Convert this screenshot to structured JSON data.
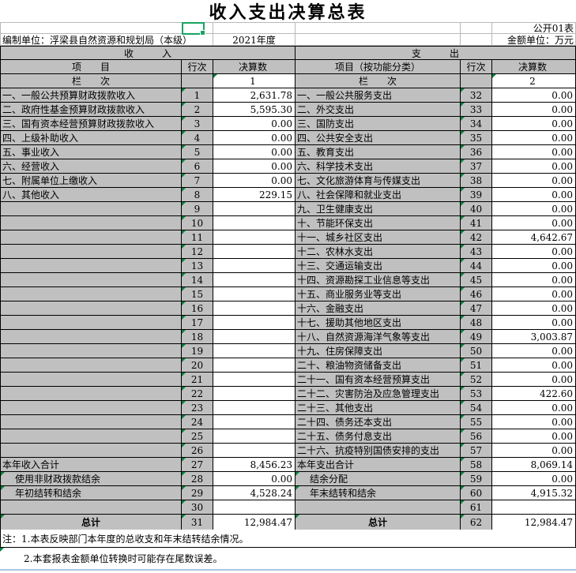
{
  "title": "收入支出决算总表",
  "meta": {
    "doc_label": "公开01表",
    "org_unit": "编制单位：浮梁县自然资源和规划局（本级）",
    "year": "2021年度",
    "amount_unit": "金额单位：万元"
  },
  "table": {
    "income_header": "收　　　入",
    "expense_header": "支　　　出",
    "col_item": "项　　目",
    "col_item_fn": "项目（按功能分类）",
    "col_line": "行次",
    "col_value": "决算数",
    "col_rank": "栏　　次",
    "col_index_income": "1",
    "col_index_expense": "2",
    "income_rows": [
      {
        "label": "一、一般公共预算财政拨款收入",
        "line": "1",
        "value": "2,631.78",
        "style": ""
      },
      {
        "label": "二、政府性基金预算财政拨款收入",
        "line": "2",
        "value": "5,595.30",
        "style": ""
      },
      {
        "label": "三、国有资本经营预算财政拨款收入",
        "line": "3",
        "value": "0.00",
        "style": ""
      },
      {
        "label": "四、上级补助收入",
        "line": "4",
        "value": "0.00",
        "style": ""
      },
      {
        "label": "五、事业收入",
        "line": "5",
        "value": "0.00",
        "style": ""
      },
      {
        "label": "六、经营收入",
        "line": "6",
        "value": "0.00",
        "style": ""
      },
      {
        "label": "七、附属单位上缴收入",
        "line": "7",
        "value": "0.00",
        "style": ""
      },
      {
        "label": "八、其他收入",
        "line": "8",
        "value": "229.15",
        "style": ""
      },
      {
        "label": "",
        "line": "9",
        "value": "",
        "style": ""
      },
      {
        "label": "",
        "line": "10",
        "value": "",
        "style": ""
      },
      {
        "label": "",
        "line": "11",
        "value": "",
        "style": ""
      },
      {
        "label": "",
        "line": "12",
        "value": "",
        "style": ""
      },
      {
        "label": "",
        "line": "13",
        "value": "",
        "style": ""
      },
      {
        "label": "",
        "line": "14",
        "value": "",
        "style": ""
      },
      {
        "label": "",
        "line": "15",
        "value": "",
        "style": ""
      },
      {
        "label": "",
        "line": "16",
        "value": "",
        "style": ""
      },
      {
        "label": "",
        "line": "17",
        "value": "",
        "style": ""
      },
      {
        "label": "",
        "line": "18",
        "value": "",
        "style": ""
      },
      {
        "label": "",
        "line": "19",
        "value": "",
        "style": ""
      },
      {
        "label": "",
        "line": "20",
        "value": "",
        "style": ""
      },
      {
        "label": "",
        "line": "21",
        "value": "",
        "style": ""
      },
      {
        "label": "",
        "line": "22",
        "value": "",
        "style": ""
      },
      {
        "label": "",
        "line": "23",
        "value": "",
        "style": ""
      },
      {
        "label": "",
        "line": "24",
        "value": "",
        "style": ""
      },
      {
        "label": "",
        "line": "25",
        "value": "",
        "style": ""
      },
      {
        "label": "",
        "line": "26",
        "value": "",
        "style": ""
      },
      {
        "label": "本年收入合计",
        "line": "27",
        "value": "8,456.23",
        "style": ""
      },
      {
        "label": "使用非财政拨款结余",
        "line": "28",
        "value": "0.00",
        "style": "indent"
      },
      {
        "label": "年初结转和结余",
        "line": "29",
        "value": "4,528.24",
        "style": "indent"
      },
      {
        "label": "",
        "line": "30",
        "value": "",
        "style": ""
      },
      {
        "label": "总计",
        "line": "31",
        "value": "12,984.47",
        "style": "total"
      }
    ],
    "expense_rows": [
      {
        "label": "一、一般公共服务支出",
        "line": "32",
        "value": "0.00",
        "style": ""
      },
      {
        "label": "二、外交支出",
        "line": "33",
        "value": "0.00",
        "style": ""
      },
      {
        "label": "三、国防支出",
        "line": "34",
        "value": "0.00",
        "style": ""
      },
      {
        "label": "四、公共安全支出",
        "line": "35",
        "value": "0.00",
        "style": ""
      },
      {
        "label": "五、教育支出",
        "line": "36",
        "value": "0.00",
        "style": ""
      },
      {
        "label": "六、科学技术支出",
        "line": "37",
        "value": "0.00",
        "style": ""
      },
      {
        "label": "七、文化旅游体育与传媒支出",
        "line": "38",
        "value": "0.00",
        "style": ""
      },
      {
        "label": "八、社会保障和就业支出",
        "line": "39",
        "value": "0.00",
        "style": ""
      },
      {
        "label": "九、卫生健康支出",
        "line": "40",
        "value": "0.00",
        "style": ""
      },
      {
        "label": "十、节能环保支出",
        "line": "41",
        "value": "0.00",
        "style": ""
      },
      {
        "label": "十一、城乡社区支出",
        "line": "42",
        "value": "4,642.67",
        "style": ""
      },
      {
        "label": "十二、农林水支出",
        "line": "43",
        "value": "0.00",
        "style": ""
      },
      {
        "label": "十三、交通运输支出",
        "line": "44",
        "value": "0.00",
        "style": ""
      },
      {
        "label": "十四、资源勘探工业信息等支出",
        "line": "45",
        "value": "0.00",
        "style": ""
      },
      {
        "label": "十五、商业服务业等支出",
        "line": "46",
        "value": "0.00",
        "style": ""
      },
      {
        "label": "十六、金融支出",
        "line": "47",
        "value": "0.00",
        "style": ""
      },
      {
        "label": "十七、援助其他地区支出",
        "line": "48",
        "value": "0.00",
        "style": ""
      },
      {
        "label": "十八、自然资源海洋气象等支出",
        "line": "49",
        "value": "3,003.87",
        "style": ""
      },
      {
        "label": "十九、住房保障支出",
        "line": "50",
        "value": "0.00",
        "style": ""
      },
      {
        "label": "二十、粮油物资储备支出",
        "line": "51",
        "value": "0.00",
        "style": ""
      },
      {
        "label": "二十一、国有资本经营预算支出",
        "line": "52",
        "value": "0.00",
        "style": ""
      },
      {
        "label": "二十二、灾害防治及应急管理支出",
        "line": "53",
        "value": "422.60",
        "style": ""
      },
      {
        "label": "二十三、其他支出",
        "line": "54",
        "value": "0.00",
        "style": ""
      },
      {
        "label": "二十四、债务还本支出",
        "line": "55",
        "value": "0.00",
        "style": ""
      },
      {
        "label": "二十五、债务付息支出",
        "line": "56",
        "value": "0.00",
        "style": ""
      },
      {
        "label": "二十六、抗疫特别国债安排的支出",
        "line": "57",
        "value": "0.00",
        "style": ""
      },
      {
        "label": "本年支出合计",
        "line": "58",
        "value": "8,069.14",
        "style": ""
      },
      {
        "label": "结余分配",
        "line": "59",
        "value": "0.00",
        "style": "indent"
      },
      {
        "label": "年末结转和结余",
        "line": "60",
        "value": "4,915.32",
        "style": "indent"
      },
      {
        "label": "",
        "line": "61",
        "value": "",
        "style": ""
      },
      {
        "label": "总计",
        "line": "62",
        "value": "12,984.47",
        "style": "total"
      }
    ]
  },
  "notes": [
    "注：1.本表反映部门本年度的总收支和年末结转结余情况。",
    "2.本套报表金额单位转换时可能存在尾数误差。"
  ],
  "colors": {
    "header_fill": "#c0c0c0",
    "grid_border": "#000000",
    "light_grid": "#b9b9b9",
    "selection": "#18a562",
    "error_indicator": "#008040",
    "pane_edge": "#a9c5e1"
  }
}
